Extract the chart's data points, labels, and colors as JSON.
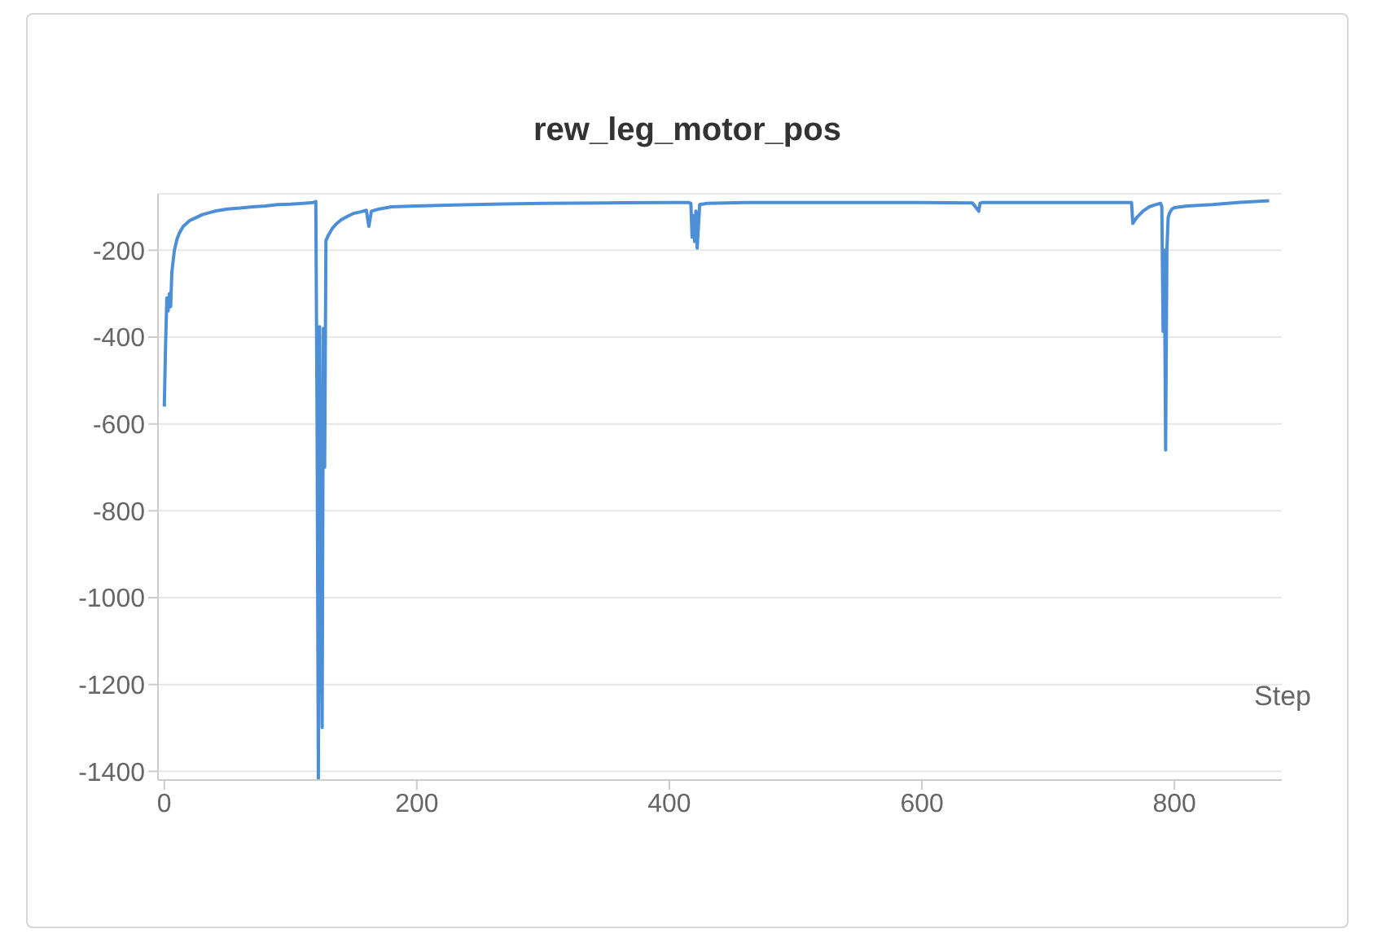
{
  "chart_data": {
    "type": "line",
    "title": "rew_leg_motor_pos",
    "xlabel": "Step",
    "x": [
      0,
      1,
      2,
      3,
      4,
      5,
      6,
      8,
      10,
      12,
      15,
      20,
      25,
      30,
      40,
      50,
      60,
      70,
      80,
      90,
      100,
      110,
      118,
      120,
      121,
      122,
      123,
      124,
      125,
      126,
      127,
      128,
      130,
      133,
      136,
      140,
      145,
      150,
      155,
      160,
      162,
      164,
      170,
      180,
      200,
      230,
      260,
      300,
      350,
      400,
      415,
      417,
      418,
      419,
      420,
      421,
      422,
      424,
      430,
      460,
      500,
      550,
      600,
      640,
      645,
      646,
      648,
      650,
      700,
      740,
      766,
      767,
      770,
      775,
      780,
      785,
      789,
      790,
      791,
      792,
      793,
      794,
      795,
      796,
      797,
      798,
      800,
      810,
      830,
      850,
      875
    ],
    "series": [
      {
        "color": "#4d8fd6",
        "values": [
          -560,
          -420,
          -310,
          -340,
          -300,
          -330,
          -250,
          -200,
          -175,
          -160,
          -145,
          -132,
          -125,
          -118,
          -110,
          -105,
          -103,
          -100,
          -98,
          -95,
          -94,
          -92,
          -90,
          -88,
          -600,
          -1418,
          -376,
          -900,
          -1299,
          -380,
          -700,
          -178,
          -165,
          -150,
          -140,
          -130,
          -122,
          -115,
          -112,
          -108,
          -145,
          -110,
          -105,
          -100,
          -98,
          -96,
          -94,
          -92,
          -91,
          -90,
          -90,
          -92,
          -170,
          -120,
          -180,
          -110,
          -195,
          -95,
          -92,
          -90,
          -90,
          -90,
          -90,
          -91,
          -110,
          -92,
          -90,
          -90,
          -90,
          -90,
          -90,
          -138,
          -125,
          -110,
          -100,
          -95,
          -92,
          -100,
          -387,
          -200,
          -660,
          -200,
          -125,
          -115,
          -110,
          -105,
          -102,
          -98,
          -95,
          -90,
          -86
        ]
      }
    ],
    "xlim": [
      -5,
      885
    ],
    "xticks": [
      0,
      200,
      400,
      600,
      800
    ],
    "ylim": [
      -1420,
      -70
    ],
    "yticks": [
      -200,
      -400,
      -600,
      -800,
      -1000,
      -1200,
      -1400
    ],
    "grid": "y",
    "legend": false,
    "marker": "none",
    "line_style": "solid"
  }
}
